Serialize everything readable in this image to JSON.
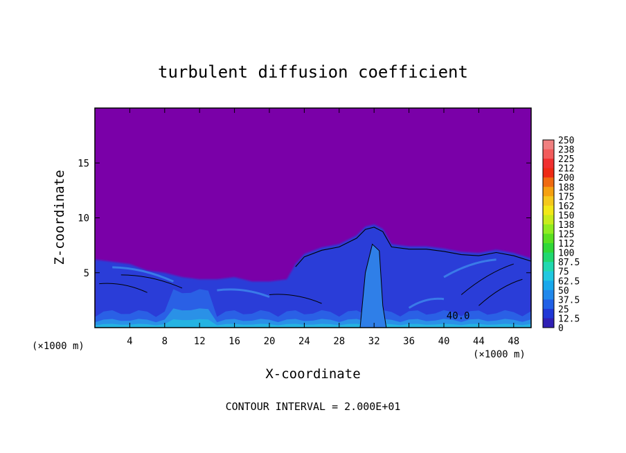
{
  "chart_data": {
    "type": "heatmap",
    "title": "turbulent diffusion coefficient",
    "xlabel": "X-coordinate",
    "ylabel": "Z-coordinate",
    "x_unit": "(×1000 m)",
    "xlim": [
      0,
      50
    ],
    "ylim": [
      0,
      20
    ],
    "x_ticks": [
      4,
      8,
      12,
      16,
      20,
      24,
      28,
      32,
      36,
      40,
      44,
      48
    ],
    "x_tick_labels": [
      "4",
      "8",
      "12",
      "16",
      "20",
      "24",
      "28",
      "32",
      "36",
      "40",
      "44",
      "48"
    ],
    "y_ticks": [
      5,
      10,
      15
    ],
    "y_tick_labels": [
      "5",
      "10",
      "15"
    ],
    "colorbar_levels": [
      "250",
      "238",
      "225",
      "212",
      "200",
      "188",
      "175",
      "162",
      "150",
      "138",
      "125",
      "112",
      "100",
      "87.5",
      "75",
      "62.5",
      "50",
      "37.5",
      "25",
      "12.5",
      "0"
    ],
    "colorbar_colors": [
      "#f08080",
      "#f25c5c",
      "#f03030",
      "#ee2a14",
      "#f06a10",
      "#f5a010",
      "#f5c81c",
      "#f2e818",
      "#c8ec1c",
      "#90ec20",
      "#5ae020",
      "#30d838",
      "#20d870",
      "#20d8b0",
      "#20c8e0",
      "#18a8ec",
      "#2088ec",
      "#2060e6",
      "#2038d6",
      "#3020b4",
      "#7a00a8"
    ],
    "background_value": "0",
    "background_color": "#7a00a8",
    "contour_interval": "CONTOUR INTERVAL = 2.000E+01",
    "contour_annotations": [
      {
        "x": 40.3,
        "z": 0.8,
        "text": "40.0"
      }
    ],
    "turbulent_region_top_z": [
      [
        0,
        6.2
      ],
      [
        2,
        6.0
      ],
      [
        4,
        5.8
      ],
      [
        6,
        5.2
      ],
      [
        8,
        5.0
      ],
      [
        10,
        4.6
      ],
      [
        12,
        4.4
      ],
      [
        14,
        4.4
      ],
      [
        16,
        4.6
      ],
      [
        18,
        4.2
      ],
      [
        20,
        4.2
      ],
      [
        22,
        4.4
      ],
      [
        23,
        5.8
      ],
      [
        24,
        6.7
      ],
      [
        26,
        7.3
      ],
      [
        28,
        7.6
      ],
      [
        30,
        8.4
      ],
      [
        31,
        9.2
      ],
      [
        32,
        9.4
      ],
      [
        33,
        9.0
      ],
      [
        34,
        7.6
      ],
      [
        36,
        7.4
      ],
      [
        38,
        7.4
      ],
      [
        40,
        7.2
      ],
      [
        42,
        6.9
      ],
      [
        44,
        6.8
      ],
      [
        46,
        7.1
      ],
      [
        48,
        6.8
      ],
      [
        50,
        6.3
      ]
    ]
  }
}
